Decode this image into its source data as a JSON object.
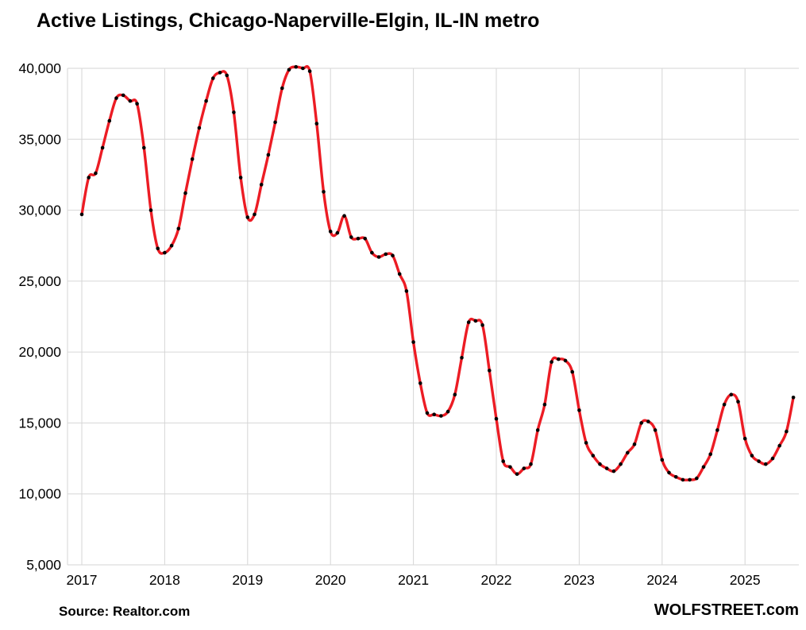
{
  "page": {
    "title": "Active Listings, Chicago-Naperville-Elgin, IL-IN metro",
    "source_note": "Source: Realtor.com",
    "branding": "WOLFSTREET.com"
  },
  "chart_data": {
    "type": "line",
    "title": "Active Listings, Chicago-Naperville-Elgin, IL-IN metro",
    "xlabel": "",
    "ylabel": "",
    "ylim": [
      5000,
      40000
    ],
    "ytick_step": 5000,
    "grid": true,
    "legend": "none",
    "line_color": "#ec1c24",
    "marker_color": "#000000",
    "grid_color": "#d6d6d6",
    "x_unit": "month",
    "x_start": "2017-01",
    "x_end": "2025-08",
    "x_tick_labels": [
      "2017",
      "2018",
      "2019",
      "2020",
      "2021",
      "2022",
      "2023",
      "2024",
      "2025"
    ],
    "series": [
      {
        "name": "Active listings",
        "values": [
          29700,
          32300,
          32600,
          34400,
          36300,
          37900,
          38100,
          37700,
          37500,
          34400,
          30000,
          27300,
          27000,
          27500,
          28700,
          31200,
          33600,
          35800,
          37700,
          39300,
          39700,
          39500,
          36900,
          32300,
          29500,
          29700,
          31800,
          33900,
          36200,
          38600,
          39900,
          40100,
          40000,
          39800,
          36100,
          31300,
          28500,
          28400,
          29600,
          28100,
          28000,
          28000,
          27000,
          26700,
          26900,
          26800,
          25500,
          24300,
          20700,
          17800,
          15700,
          15600,
          15500,
          15800,
          17000,
          19600,
          22100,
          22200,
          21900,
          18700,
          15300,
          12300,
          11900,
          11400,
          11800,
          12100,
          14500,
          16300,
          19300,
          19500,
          19400,
          18600,
          15900,
          13600,
          12700,
          12100,
          11800,
          11600,
          12100,
          12900,
          13500,
          15000,
          15100,
          14500,
          12400,
          11500,
          11200,
          11000,
          11000,
          11100,
          11900,
          12800,
          14500,
          16300,
          17000,
          16500,
          13900,
          12700,
          12300,
          12100,
          12500,
          13400,
          14400,
          16800
        ]
      }
    ]
  }
}
